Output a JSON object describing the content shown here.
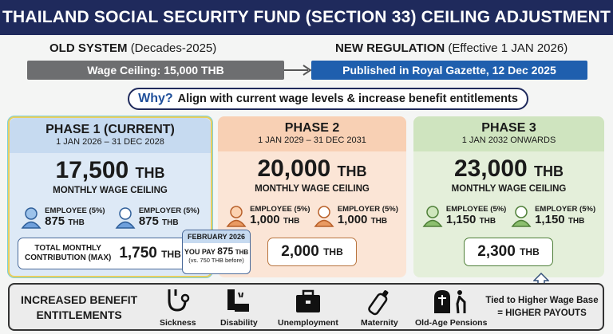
{
  "title": "THAILAND SOCIAL SECURITY FUND (SECTION 33) CEILING ADJUSTMENT",
  "old": {
    "label": "OLD SYSTEM",
    "sub": "(Decades-2025)",
    "bar": "Wage Ceiling: 15,000 THB",
    "color": "#6d6e70"
  },
  "new": {
    "label": "NEW REGULATION",
    "sub": "(Effective 1 JAN 2026)",
    "bar": "Published in Royal Gazette, 12 Dec 2025",
    "color": "#1f5fae"
  },
  "why": {
    "q": "Why?",
    "text": "Align with current wage levels & increase benefit entitlements"
  },
  "phases": [
    {
      "title": "PHASE 1 (CURRENT)",
      "dates": "1 JAN 2026 – 31 DEC 2028",
      "ceiling": "17,500",
      "unit": "THB",
      "caption": "MONTHLY WAGE CEILING",
      "employee_label": "EMPLOYEE (5%)",
      "employee": "875",
      "employer_label": "EMPLOYER (5%)",
      "employer": "875",
      "total_label_1": "TOTAL MONTHLY",
      "total_label_2": "CONTRIBUTION (MAX)",
      "total": "1,750",
      "color": "#4a86c8"
    },
    {
      "title": "PHASE 2",
      "dates": "1 JAN 2029 – 31 DEC 2031",
      "ceiling": "20,000",
      "unit": "THB",
      "caption": "MONTHLY WAGE CEILING",
      "employee_label": "EMPLOYEE (5%)",
      "employee": "1,000",
      "employer_label": "EMPLOYER (5%)",
      "employer": "1,000",
      "total": "2,000",
      "color": "#e08a4e"
    },
    {
      "title": "PHASE 3",
      "dates": "1 JAN 2032 ONWARDS",
      "ceiling": "23,000",
      "unit": "THB",
      "caption": "MONTHLY WAGE CEILING",
      "employee_label": "EMPLOYEE (5%)",
      "employee": "1,150",
      "employer_label": "EMPLOYER (5%)",
      "employer": "1,150",
      "total": "2,300",
      "color": "#6fa655"
    }
  ],
  "callout": {
    "month": "FEBRUARY 2026",
    "you_pay": "YOU PAY",
    "amount": "875",
    "unit": "THB",
    "note": "(vs. 750 THB before)"
  },
  "benefits": {
    "title_1": "INCREASED BENEFIT",
    "title_2": "ENTITLEMENTS",
    "items": [
      {
        "label": "Sickness",
        "icon": "stethoscope-icon"
      },
      {
        "label": "Disability",
        "icon": "disability-icon"
      },
      {
        "label": "Unemployment",
        "icon": "briefcase-icon"
      },
      {
        "label": "Maternity",
        "icon": "baby-bottle-icon"
      },
      {
        "label": "Old-Age Pensions",
        "icon": "pension-icon"
      }
    ],
    "note_1": "Tied to Higher Wage Base",
    "note_2": "= HIGHER PAYOUTS"
  }
}
